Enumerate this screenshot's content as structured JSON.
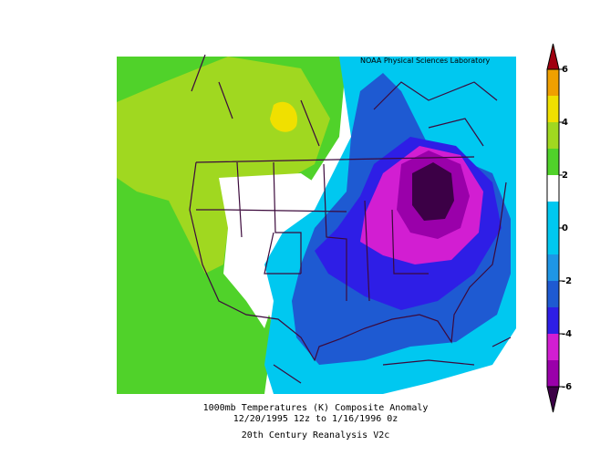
{
  "header": {
    "credit": "NOAA Physical Sciences Laboratory"
  },
  "colorbar": {
    "ticks": [
      -6,
      -4,
      -2,
      0,
      2,
      4,
      6
    ],
    "bounds": [
      -6,
      -5,
      -4,
      -3,
      -2,
      -1,
      1,
      2,
      3,
      4,
      5,
      6
    ],
    "colors": [
      "#3c0046",
      "#9a00aa",
      "#d21ed2",
      "#2e1ee6",
      "#1e5ad2",
      "#1e96e6",
      "#00c8f0",
      "#ffffff",
      "#50d22a",
      "#a0d820",
      "#f0e000",
      "#f0a000",
      "#e84a10",
      "#a00010"
    ]
  },
  "caption": {
    "line1": "1000mb Temperatures (K)   Composite Anomaly",
    "line2": "12/20/1995 12z  to 1/16/1996 0z",
    "line3": "20th Century Reanalysis V2c"
  }
}
